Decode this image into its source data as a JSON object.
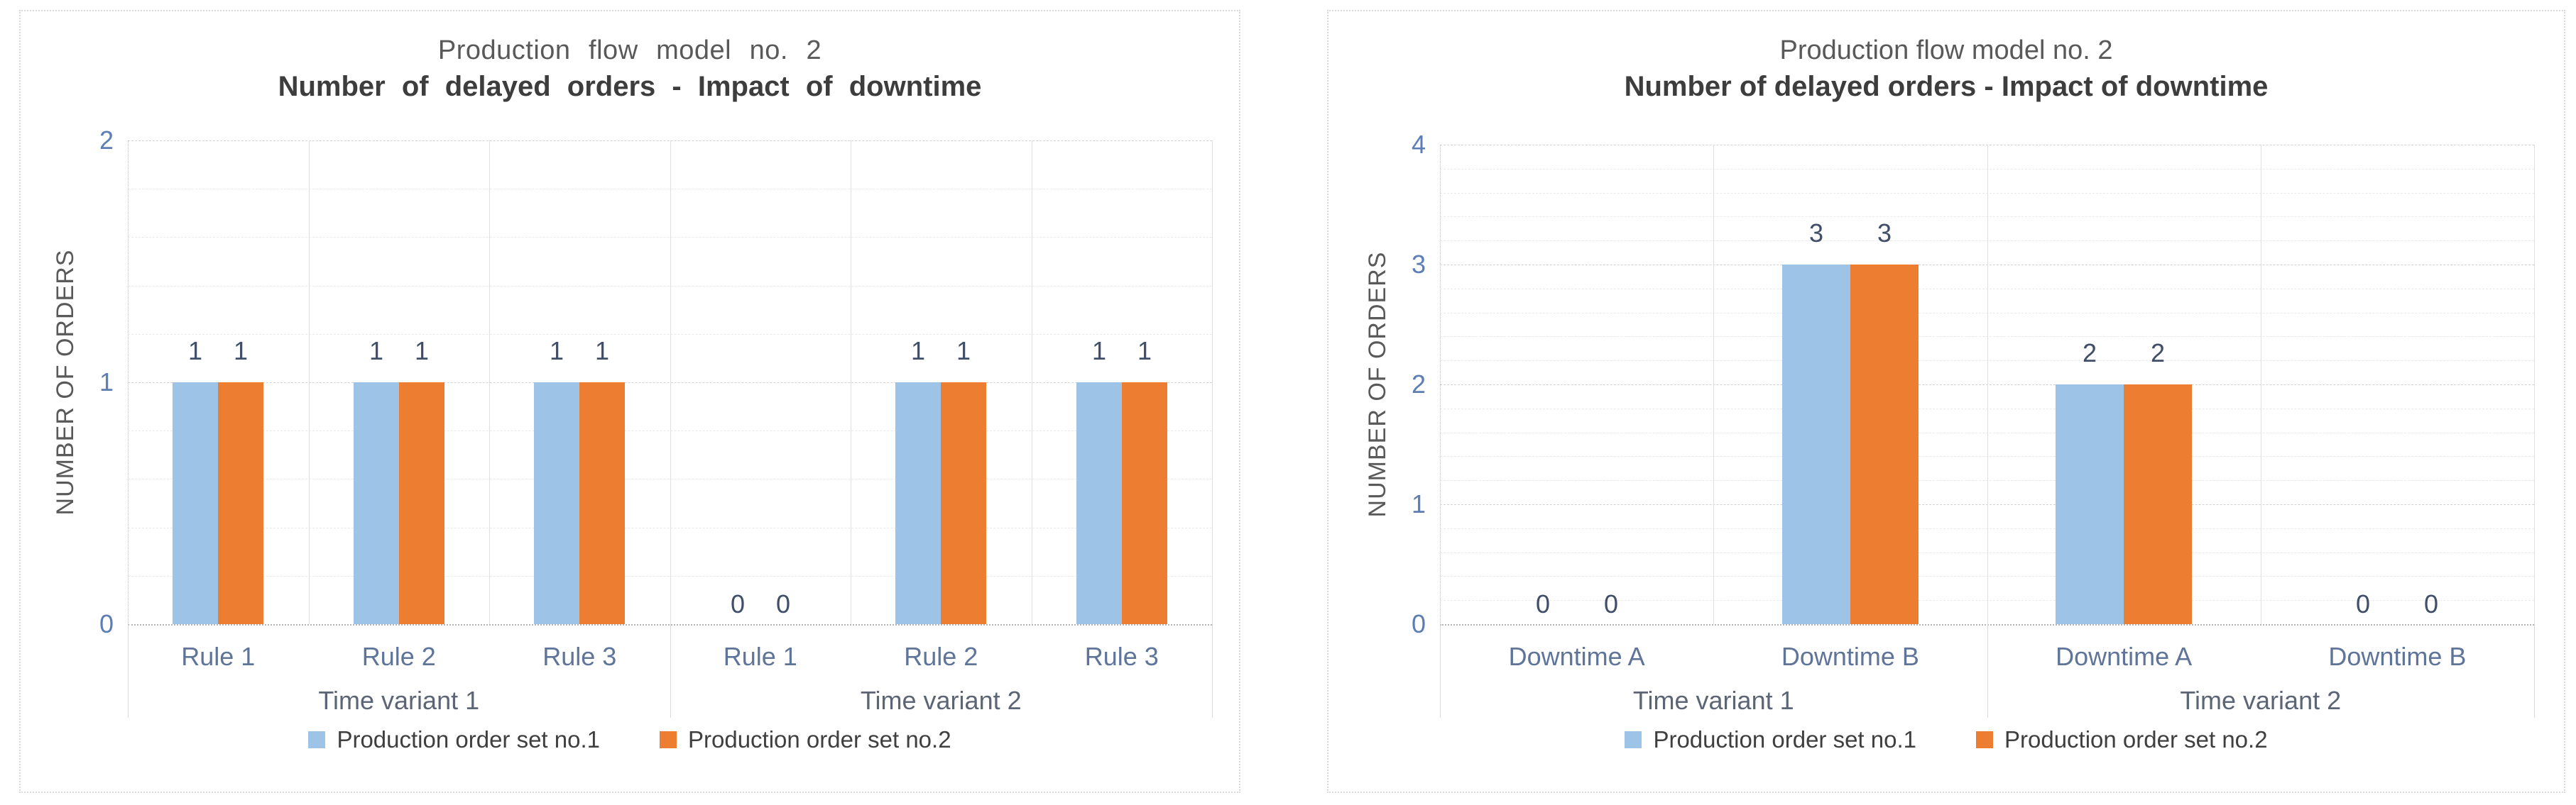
{
  "page": {
    "background": "#ffffff"
  },
  "chart_data": [
    {
      "type": "bar",
      "title": "Production flow model no. 2",
      "subtitle": "Number of delayed orders - Impact of downtime",
      "ylabel": "NUMBER OF ORDERS",
      "ylim": [
        0,
        2
      ],
      "y_major_unit": 1,
      "y_minor_unit": 0.2,
      "grid": true,
      "legend_position": "bottom",
      "categories": [
        "Rule 1",
        "Rule 2",
        "Rule 3",
        "Rule 1",
        "Rule 2",
        "Rule 3"
      ],
      "groups": [
        {
          "label": "Time variant 1",
          "from": 0,
          "to": 3
        },
        {
          "label": "Time variant 2",
          "from": 3,
          "to": 6
        }
      ],
      "series": [
        {
          "name": "Production order set no.1",
          "color": "#9DC3E6",
          "values": [
            1,
            1,
            1,
            0,
            1,
            1
          ]
        },
        {
          "name": "Production order set no.2",
          "color": "#ED7D31",
          "values": [
            1,
            1,
            1,
            0,
            1,
            1
          ]
        }
      ]
    },
    {
      "type": "bar",
      "title": "Production flow model no. 2",
      "subtitle": "Number of delayed orders - Impact of downtime",
      "ylabel": "NUMBER OF ORDERS",
      "ylim": [
        0,
        4
      ],
      "y_major_unit": 1,
      "y_minor_unit": 0.2,
      "grid": true,
      "legend_position": "bottom",
      "categories": [
        "Downtime A",
        "Downtime B",
        "Downtime A",
        "Downtime B"
      ],
      "groups": [
        {
          "label": "Time variant 1",
          "from": 0,
          "to": 2
        },
        {
          "label": "Time variant 2",
          "from": 2,
          "to": 4
        }
      ],
      "series": [
        {
          "name": "Production order set no.1",
          "color": "#9DC3E6",
          "values": [
            0,
            3,
            2,
            0
          ]
        },
        {
          "name": "Production order set no.2",
          "color": "#ED7D31",
          "values": [
            0,
            3,
            2,
            0
          ]
        }
      ]
    }
  ]
}
